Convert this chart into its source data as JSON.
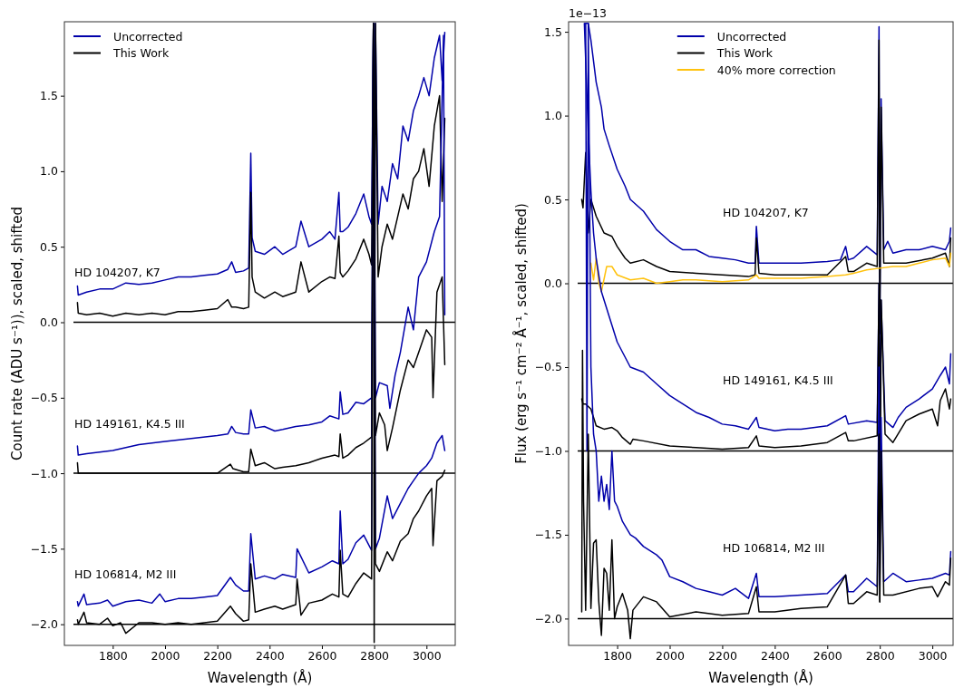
{
  "chart_data": [
    {
      "type": "line",
      "xlabel": "Wavelength (Å)",
      "ylabel": "Count rate (ADU s⁻¹)), scaled, shifted",
      "xlim": [
        1615,
        3110
      ],
      "ylim": [
        -2.14,
        1.99
      ],
      "xticks": [
        1800,
        2000,
        2200,
        2400,
        2600,
        2800,
        3000
      ],
      "yticks": [
        {
          "value": 1.5,
          "label": "1.5"
        },
        {
          "value": 1,
          "label": "1.0"
        },
        {
          "value": 0.5,
          "label": "0.5"
        },
        {
          "value": 0,
          "label": "0.0"
        },
        {
          "value": -0.5,
          "label": "−0.5"
        },
        {
          "value": -1,
          "label": "−1.0"
        },
        {
          "value": -1.5,
          "label": "−1.5"
        },
        {
          "value": -2,
          "label": "−2.0"
        }
      ],
      "legend": "top left",
      "ref_lines": [
        {
          "axis": "y",
          "value": 0,
          "color": "#000000"
        },
        {
          "axis": "y",
          "value": -1,
          "color": "#000000"
        },
        {
          "axis": "y",
          "value": -2,
          "color": "#000000"
        }
      ],
      "annotations": [
        "HD 104207, K7",
        "HD 149161, K4.5 III",
        "HD 106814, M2 III"
      ],
      "series": [
        {
          "name": "Uncorrected",
          "color": "#0000aa",
          "x": [
            1665,
            1668,
            1700,
            1750,
            1800,
            1850,
            1900,
            1950,
            2000,
            2050,
            2100,
            2150,
            2200,
            2240,
            2255,
            2270,
            2300,
            2320,
            2328,
            2333,
            2345,
            2380,
            2420,
            2450,
            2500,
            2520,
            2550,
            2600,
            2630,
            2650,
            2665,
            2670,
            2680,
            2700,
            2730,
            2760,
            2780,
            2790,
            2797,
            2800,
            2805,
            2815,
            2830,
            2850,
            2870,
            2890,
            2910,
            2930,
            2950,
            2970,
            2990,
            3010,
            3030,
            3050,
            3060,
            3070
          ],
          "values": [
            0.24,
            0.18,
            0.2,
            0.22,
            0.22,
            0.26,
            0.25,
            0.26,
            0.28,
            0.3,
            0.3,
            0.31,
            0.32,
            0.35,
            0.4,
            0.33,
            0.34,
            0.36,
            1.12,
            0.56,
            0.47,
            0.45,
            0.5,
            0.45,
            0.5,
            0.67,
            0.5,
            0.55,
            0.6,
            0.55,
            0.86,
            0.6,
            0.6,
            0.63,
            0.72,
            0.85,
            0.7,
            0.65,
            1.98,
            0.6,
            1.98,
            0.65,
            0.9,
            0.8,
            1.05,
            0.95,
            1.3,
            1.2,
            1.4,
            1.5,
            1.62,
            1.5,
            1.75,
            1.9,
            1.6,
            1.92
          ]
        },
        {
          "name": "This Work",
          "color": "#000000",
          "x": [
            1665,
            1668,
            1700,
            1750,
            1800,
            1850,
            1900,
            1950,
            2000,
            2050,
            2100,
            2150,
            2200,
            2240,
            2255,
            2270,
            2300,
            2320,
            2328,
            2333,
            2345,
            2380,
            2420,
            2450,
            2500,
            2520,
            2550,
            2600,
            2630,
            2650,
            2665,
            2670,
            2680,
            2700,
            2730,
            2760,
            2780,
            2790,
            2797,
            2800,
            2805,
            2815,
            2830,
            2850,
            2870,
            2890,
            2910,
            2930,
            2950,
            2970,
            2990,
            3010,
            3030,
            3050,
            3060,
            3070
          ],
          "values": [
            0.13,
            0.06,
            0.05,
            0.06,
            0.04,
            0.06,
            0.05,
            0.06,
            0.05,
            0.07,
            0.07,
            0.08,
            0.09,
            0.15,
            0.1,
            0.1,
            0.09,
            0.1,
            0.86,
            0.3,
            0.2,
            0.16,
            0.2,
            0.17,
            0.2,
            0.4,
            0.2,
            0.27,
            0.3,
            0.29,
            0.57,
            0.33,
            0.3,
            0.34,
            0.42,
            0.55,
            0.45,
            0.38,
            1.98,
            -2.12,
            1.98,
            0.3,
            0.5,
            0.65,
            0.55,
            0.7,
            0.85,
            0.75,
            0.95,
            1.0,
            1.15,
            0.9,
            1.3,
            1.5,
            0.8,
            1.35
          ]
        },
        {
          "color": "#0000aa",
          "x": [
            1665,
            1668,
            1700,
            1800,
            1900,
            2000,
            2100,
            2200,
            2240,
            2255,
            2270,
            2300,
            2320,
            2328,
            2345,
            2380,
            2420,
            2450,
            2500,
            2550,
            2600,
            2630,
            2665,
            2670,
            2680,
            2700,
            2730,
            2760,
            2790,
            2797,
            2805,
            2820,
            2850,
            2860,
            2880,
            2900,
            2930,
            2950,
            2970,
            3000,
            3030,
            3050,
            3065,
            3070
          ],
          "values": [
            -0.82,
            -0.88,
            -0.87,
            -0.85,
            -0.81,
            -0.79,
            -0.77,
            -0.75,
            -0.74,
            -0.69,
            -0.73,
            -0.74,
            -0.74,
            -0.58,
            -0.7,
            -0.69,
            -0.72,
            -0.71,
            -0.69,
            -0.68,
            -0.66,
            -0.62,
            -0.64,
            -0.46,
            -0.61,
            -0.6,
            -0.53,
            -0.54,
            -0.5,
            1.98,
            -0.5,
            -0.4,
            -0.42,
            -0.57,
            -0.35,
            -0.2,
            0.1,
            -0.05,
            0.3,
            0.4,
            0.6,
            0.7,
            1.9,
            0.05
          ]
        },
        {
          "color": "#000000",
          "x": [
            1665,
            1668,
            1700,
            1800,
            1900,
            2000,
            2100,
            2200,
            2250,
            2260,
            2300,
            2320,
            2328,
            2345,
            2380,
            2420,
            2450,
            2500,
            2550,
            2600,
            2650,
            2665,
            2670,
            2680,
            2700,
            2730,
            2760,
            2790,
            2797,
            2805,
            2820,
            2840,
            2850,
            2870,
            2900,
            2930,
            2950,
            2980,
            3000,
            3020,
            3025,
            3040,
            3060,
            3070
          ],
          "values": [
            -0.93,
            -1.0,
            -1.0,
            -1.0,
            -1.0,
            -1.0,
            -1.0,
            -1.0,
            -0.94,
            -0.97,
            -0.99,
            -0.99,
            -0.84,
            -0.95,
            -0.93,
            -0.97,
            -0.96,
            -0.95,
            -0.93,
            -0.9,
            -0.88,
            -0.89,
            -0.74,
            -0.9,
            -0.88,
            -0.83,
            -0.8,
            -0.76,
            1.98,
            -0.75,
            -0.6,
            -0.68,
            -0.85,
            -0.7,
            -0.45,
            -0.25,
            -0.3,
            -0.15,
            -0.05,
            -0.1,
            -0.5,
            0.2,
            0.3,
            -0.28
          ]
        },
        {
          "color": "#0000aa",
          "x": [
            1665,
            1668,
            1690,
            1700,
            1750,
            1780,
            1800,
            1850,
            1900,
            1950,
            1980,
            2000,
            2050,
            2100,
            2150,
            2200,
            2250,
            2270,
            2300,
            2320,
            2328,
            2345,
            2380,
            2420,
            2450,
            2500,
            2505,
            2550,
            2600,
            2640,
            2665,
            2670,
            2680,
            2700,
            2730,
            2760,
            2790,
            2797,
            2805,
            2820,
            2850,
            2870,
            2900,
            2930,
            2950,
            2970,
            3000,
            3020,
            3040,
            3060,
            3070
          ],
          "values": [
            -1.85,
            -1.88,
            -1.8,
            -1.87,
            -1.86,
            -1.84,
            -1.88,
            -1.85,
            -1.84,
            -1.86,
            -1.8,
            -1.85,
            -1.83,
            -1.83,
            -1.82,
            -1.81,
            -1.69,
            -1.74,
            -1.78,
            -1.78,
            -1.4,
            -1.7,
            -1.68,
            -1.7,
            -1.67,
            -1.69,
            -1.5,
            -1.66,
            -1.62,
            -1.58,
            -1.6,
            -1.25,
            -1.6,
            -1.57,
            -1.46,
            -1.41,
            -1.51,
            1.98,
            -1.5,
            -1.43,
            -1.15,
            -1.3,
            -1.2,
            -1.1,
            -1.05,
            -1.0,
            -0.95,
            -0.9,
            -0.8,
            -0.75,
            -0.85
          ]
        },
        {
          "color": "#000000",
          "x": [
            1665,
            1668,
            1690,
            1700,
            1750,
            1780,
            1800,
            1830,
            1850,
            1900,
            1950,
            2000,
            2050,
            2100,
            2150,
            2200,
            2250,
            2270,
            2300,
            2320,
            2328,
            2345,
            2380,
            2420,
            2450,
            2500,
            2505,
            2520,
            2550,
            2600,
            2640,
            2665,
            2670,
            2680,
            2700,
            2730,
            2760,
            2790,
            2797,
            2805,
            2820,
            2850,
            2870,
            2900,
            2930,
            2950,
            2970,
            3000,
            3020,
            3025,
            3040,
            3060,
            3070
          ],
          "values": [
            -1.97,
            -2.0,
            -1.92,
            -1.99,
            -2.0,
            -1.96,
            -2.01,
            -1.99,
            -2.06,
            -1.99,
            -1.99,
            -2.0,
            -1.99,
            -2.0,
            -1.99,
            -1.98,
            -1.88,
            -1.93,
            -1.98,
            -1.97,
            -1.6,
            -1.92,
            -1.9,
            -1.88,
            -1.9,
            -1.87,
            -1.7,
            -1.94,
            -1.86,
            -1.84,
            -1.8,
            -1.82,
            -1.51,
            -1.8,
            -1.82,
            -1.73,
            -1.66,
            -1.7,
            1.98,
            -1.6,
            -1.65,
            -1.52,
            -1.58,
            -1.45,
            -1.4,
            -1.3,
            -1.25,
            -1.15,
            -1.1,
            -1.48,
            -1.05,
            -1.02,
            -0.98
          ]
        }
      ]
    },
    {
      "type": "line",
      "xlabel": "Wavelength (Å)",
      "ylabel": "Flux (erg s⁻¹ cm⁻² Å⁻¹, scaled, shifted)",
      "xlim": [
        1615,
        3079
      ],
      "ylim": [
        -2.16,
        1.56
      ],
      "xticks": [
        1800,
        2000,
        2200,
        2400,
        2600,
        2800,
        3000
      ],
      "yticks": [
        {
          "value": 1.5,
          "label": "1.5"
        },
        {
          "value": 1,
          "label": "1.0"
        },
        {
          "value": 0.5,
          "label": "0.5"
        },
        {
          "value": 0,
          "label": "0.0"
        },
        {
          "value": -0.5,
          "label": "−0.5"
        },
        {
          "value": -1,
          "label": "−1.0"
        },
        {
          "value": -1.5,
          "label": "−1.5"
        },
        {
          "value": -2,
          "label": "−2.0"
        }
      ],
      "legend": "top",
      "ref_lines": [
        {
          "axis": "y",
          "value": 0,
          "color": "#000000"
        },
        {
          "axis": "y",
          "value": -1,
          "color": "#000000"
        },
        {
          "axis": "y",
          "value": -2,
          "color": "#000000"
        }
      ],
      "annotations": [
        "1e−13",
        "HD 104207, K7",
        "HD 149161, K4.5 III",
        "HD 106814, M2 III"
      ],
      "series": [
        {
          "name": "Uncorrected",
          "color": "#0000aa",
          "x": [
            1680,
            1690,
            1700,
            1720,
            1740,
            1750,
            1770,
            1800,
            1830,
            1850,
            1900,
            1950,
            2000,
            2050,
            2100,
            2150,
            2200,
            2250,
            2300,
            2325,
            2330,
            2340,
            2400,
            2500,
            2600,
            2650,
            2670,
            2680,
            2700,
            2750,
            2790,
            2797,
            2800,
            2805,
            2815,
            2830,
            2850,
            2900,
            2950,
            3000,
            3050,
            3065,
            3070
          ],
          "values": [
            1.55,
            1.55,
            1.45,
            1.2,
            1.05,
            0.92,
            0.82,
            0.68,
            0.58,
            0.5,
            0.43,
            0.32,
            0.25,
            0.2,
            0.2,
            0.16,
            0.15,
            0.14,
            0.12,
            0.12,
            0.34,
            0.12,
            0.12,
            0.12,
            0.13,
            0.14,
            0.22,
            0.14,
            0.15,
            0.22,
            0.17,
            1.53,
            -0.3,
            1.1,
            0.2,
            0.25,
            0.18,
            0.2,
            0.2,
            0.22,
            0.2,
            0.25,
            0.33
          ]
        },
        {
          "name": "This Work",
          "color": "#000000",
          "x": [
            1665,
            1670,
            1680,
            1690,
            1700,
            1720,
            1750,
            1780,
            1800,
            1830,
            1850,
            1900,
            1950,
            2000,
            2100,
            2200,
            2300,
            2325,
            2330,
            2340,
            2400,
            2500,
            2600,
            2670,
            2680,
            2700,
            2750,
            2790,
            2797,
            2800,
            2805,
            2815,
            2850,
            2900,
            3000,
            3050,
            3065,
            3070
          ],
          "values": [
            0.5,
            0.45,
            0.78,
            0.3,
            0.5,
            0.4,
            0.3,
            0.28,
            0.22,
            0.15,
            0.12,
            0.14,
            0.1,
            0.07,
            0.06,
            0.05,
            0.04,
            0.05,
            0.27,
            0.06,
            0.05,
            0.05,
            0.05,
            0.16,
            0.07,
            0.07,
            0.12,
            0.1,
            1.45,
            -0.3,
            1.05,
            0.12,
            0.12,
            0.12,
            0.15,
            0.18,
            0.1,
            0.27
          ]
        },
        {
          "name": "40% more correction",
          "color": "#ffc20e",
          "x": [
            1700,
            1710,
            1720,
            1730,
            1740,
            1760,
            1780,
            1800,
            1850,
            1900,
            1950,
            2000,
            2050,
            2100,
            2200,
            2300,
            2330,
            2340,
            2400,
            2500,
            2600,
            2670,
            2700,
            2750,
            2800,
            2850,
            2900,
            2950,
            3000,
            3050,
            3065,
            3070
          ],
          "values": [
            0.12,
            0.02,
            0.15,
            0.0,
            -0.05,
            0.1,
            0.1,
            0.05,
            0.02,
            0.03,
            0.0,
            0.01,
            0.02,
            0.02,
            0.01,
            0.02,
            0.05,
            0.03,
            0.03,
            0.03,
            0.04,
            0.05,
            0.06,
            0.08,
            0.09,
            0.1,
            0.1,
            0.12,
            0.14,
            0.15,
            0.1,
            0.18
          ]
        },
        {
          "color": "#0000aa",
          "x": [
            1675,
            1690,
            1700,
            1710,
            1720,
            1740,
            1760,
            1780,
            1800,
            1850,
            1900,
            1950,
            2000,
            2050,
            2100,
            2150,
            2200,
            2250,
            2300,
            2330,
            2340,
            2400,
            2450,
            2500,
            2600,
            2670,
            2680,
            2750,
            2790,
            2797,
            2800,
            2805,
            2820,
            2850,
            2870,
            2900,
            2950,
            3000,
            3030,
            3050,
            3065,
            3070
          ],
          "values": [
            1.55,
            0.9,
            0.55,
            0.3,
            0.15,
            -0.05,
            -0.15,
            -0.25,
            -0.35,
            -0.5,
            -0.53,
            -0.6,
            -0.67,
            -0.72,
            -0.77,
            -0.8,
            -0.84,
            -0.85,
            -0.87,
            -0.8,
            -0.86,
            -0.88,
            -0.87,
            -0.87,
            -0.85,
            -0.79,
            -0.84,
            -0.82,
            -0.83,
            0.0,
            -1.0,
            -0.1,
            -0.82,
            -0.86,
            -0.8,
            -0.74,
            -0.69,
            -0.63,
            -0.55,
            -0.5,
            -0.6,
            -0.42
          ]
        },
        {
          "color": "#000000",
          "x": [
            1665,
            1670,
            1680,
            1700,
            1720,
            1750,
            1780,
            1800,
            1820,
            1850,
            1860,
            1900,
            2000,
            2100,
            2200,
            2300,
            2330,
            2340,
            2400,
            2500,
            2600,
            2670,
            2680,
            2700,
            2790,
            2797,
            2800,
            2805,
            2820,
            2850,
            2900,
            2950,
            3000,
            3020,
            3030,
            3050,
            3065,
            3070
          ],
          "values": [
            -0.69,
            -0.72,
            -0.72,
            -0.75,
            -0.85,
            -0.87,
            -0.86,
            -0.88,
            -0.92,
            -0.96,
            -0.93,
            -0.94,
            -0.97,
            -0.98,
            -0.99,
            -0.98,
            -0.91,
            -0.97,
            -0.98,
            -0.97,
            -0.95,
            -0.89,
            -0.94,
            -0.94,
            -0.91,
            0.0,
            -1.9,
            -0.1,
            -0.9,
            -0.95,
            -0.82,
            -0.78,
            -0.75,
            -0.85,
            -0.7,
            -0.63,
            -0.75,
            -0.69
          ]
        },
        {
          "color": "#0000aa",
          "x": [
            1680,
            1685,
            1690,
            1700,
            1710,
            1720,
            1730,
            1740,
            1750,
            1760,
            1770,
            1780,
            1790,
            1800,
            1820,
            1850,
            1870,
            1900,
            1950,
            1970,
            2000,
            2050,
            2100,
            2150,
            2200,
            2250,
            2300,
            2330,
            2340,
            2400,
            2500,
            2600,
            2670,
            2680,
            2700,
            2750,
            2790,
            2797,
            2800,
            2805,
            2815,
            2850,
            2900,
            2950,
            3000,
            3050,
            3065,
            3070
          ],
          "values": [
            1.55,
            -1.0,
            1.55,
            -0.5,
            -0.9,
            -1.0,
            -1.3,
            -1.15,
            -1.3,
            -1.2,
            -1.35,
            -1.0,
            -1.3,
            -1.33,
            -1.42,
            -1.5,
            -1.52,
            -1.57,
            -1.62,
            -1.65,
            -1.75,
            -1.78,
            -1.82,
            -1.84,
            -1.86,
            -1.82,
            -1.88,
            -1.73,
            -1.87,
            -1.87,
            -1.86,
            -1.85,
            -1.74,
            -1.84,
            -1.84,
            -1.76,
            -1.81,
            -0.5,
            -1.8,
            -0.8,
            -1.78,
            -1.73,
            -1.78,
            -1.77,
            -1.76,
            -1.73,
            -1.74,
            -1.6
          ]
        },
        {
          "color": "#000000",
          "x": [
            1665,
            1668,
            1672,
            1680,
            1690,
            1700,
            1710,
            1720,
            1730,
            1740,
            1750,
            1760,
            1770,
            1780,
            1790,
            1800,
            1820,
            1840,
            1850,
            1860,
            1900,
            1950,
            2000,
            2100,
            2200,
            2300,
            2330,
            2340,
            2400,
            2500,
            2600,
            2670,
            2680,
            2700,
            2750,
            2790,
            2797,
            2800,
            2805,
            2815,
            2850,
            2950,
            3000,
            3020,
            3050,
            3065,
            3070
          ],
          "values": [
            -1.96,
            -0.4,
            -1.3,
            -1.95,
            -0.9,
            -1.94,
            -1.55,
            -1.53,
            -1.9,
            -2.1,
            -1.7,
            -1.73,
            -1.95,
            -1.53,
            -2.0,
            -1.93,
            -1.85,
            -1.95,
            -2.12,
            -1.95,
            -1.87,
            -1.9,
            -1.99,
            -1.96,
            -1.98,
            -1.97,
            -1.81,
            -1.96,
            -1.96,
            -1.94,
            -1.93,
            -1.74,
            -1.91,
            -1.91,
            -1.84,
            -1.86,
            -0.9,
            -1.9,
            -1.0,
            -1.86,
            -1.86,
            -1.82,
            -1.81,
            -1.87,
            -1.78,
            -1.8,
            -1.64
          ]
        }
      ]
    }
  ]
}
